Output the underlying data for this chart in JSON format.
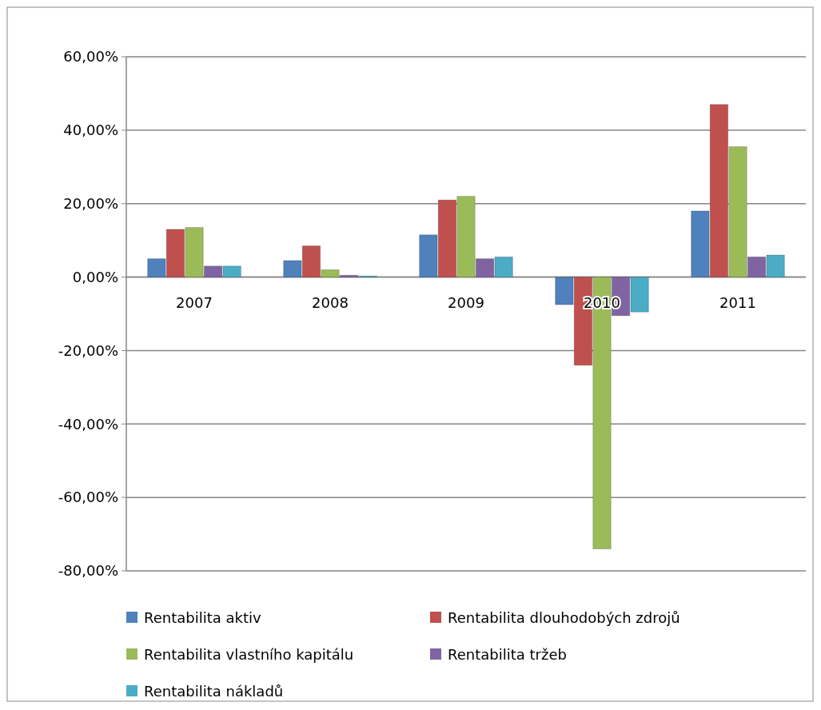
{
  "chart_data": {
    "type": "bar",
    "categories": [
      "2007",
      "2008",
      "2009",
      "2010",
      "2011"
    ],
    "series": [
      {
        "name": "Rentabilita aktiv",
        "color": "#4f81bd",
        "values": [
          5,
          4.5,
          11.5,
          -7.5,
          18
        ]
      },
      {
        "name": "Rentabilita dlouhodobých zdrojů",
        "color": "#c0504d",
        "values": [
          13,
          8.5,
          21,
          -24,
          47
        ]
      },
      {
        "name": "Rentabilita vlastního kapitálu",
        "color": "#9bbb59",
        "values": [
          13.5,
          2,
          22,
          -74,
          35.5
        ]
      },
      {
        "name": "Rentabilita tržeb",
        "color": "#8064a2",
        "values": [
          3,
          0.5,
          5,
          -10.5,
          5.5
        ]
      },
      {
        "name": "Rentabilita nákladů",
        "color": "#4bacc6",
        "values": [
          3,
          0.3,
          5.5,
          -9.5,
          6
        ]
      }
    ],
    "ylim": [
      -80,
      60
    ],
    "yticks": [
      {
        "value": -80,
        "label": "-80,00%"
      },
      {
        "value": -60,
        "label": "-60,00%"
      },
      {
        "value": -40,
        "label": "-40,00%"
      },
      {
        "value": -20,
        "label": "-20,00%"
      },
      {
        "value": 0,
        "label": "0,00%"
      },
      {
        "value": 20,
        "label": "20,00%"
      },
      {
        "value": 40,
        "label": "40,00%"
      },
      {
        "value": 60,
        "label": "60,00%"
      }
    ],
    "grid": true,
    "legend": "bottom"
  }
}
